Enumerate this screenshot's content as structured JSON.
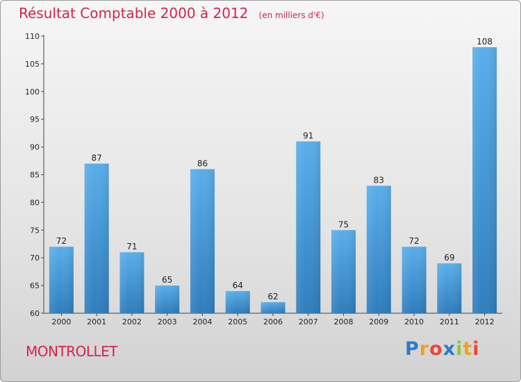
{
  "title": "Résultat Comptable 2000 à 2012",
  "subtitle": "(en milliers d'€)",
  "commune": "MONTROLLET",
  "logo": {
    "letters": [
      "P",
      "r",
      "o",
      "x",
      "i",
      "t",
      "i"
    ],
    "colors": [
      "#2a7cc7",
      "#f0a020",
      "#e8483a",
      "#2a7cc7",
      "#8cc63f",
      "#f0a020",
      "#e8483a"
    ]
  },
  "colors": {
    "title": "#d2234f",
    "bar_top": "#5aaeea",
    "bar_bottom": "#2e7dbd",
    "axis": "#444444"
  },
  "chart_data": {
    "type": "bar",
    "title": "Résultat Comptable 2000 à 2012",
    "subtitle": "(en milliers d'€)",
    "xlabel": "",
    "ylabel": "",
    "categories": [
      "2000",
      "2001",
      "2002",
      "2003",
      "2004",
      "2005",
      "2006",
      "2007",
      "2008",
      "2009",
      "2010",
      "2011",
      "2012"
    ],
    "values": [
      72,
      87,
      71,
      65,
      86,
      64,
      62,
      91,
      75,
      83,
      72,
      69,
      108
    ],
    "ylim": [
      60,
      110
    ],
    "yticks": [
      60,
      65,
      70,
      75,
      80,
      85,
      90,
      95,
      100,
      105,
      110
    ],
    "grid": false,
    "data_labels": true
  }
}
